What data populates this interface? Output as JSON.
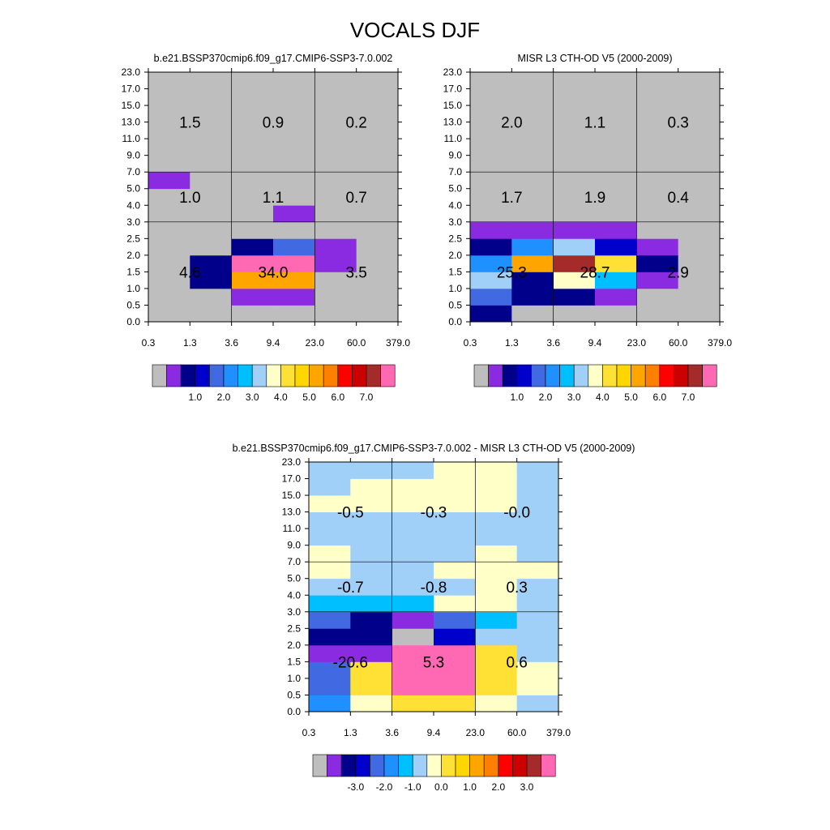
{
  "title": "VOCALS DJF",
  "colors": {
    "abs_palette": [
      "#bebebe",
      "#8a2be2",
      "#00008b",
      "#0000cd",
      "#4169e1",
      "#1e90ff",
      "#00bfff",
      "#a0cff8",
      "#ffffc8",
      "#ffe135",
      "#ffd700",
      "#ffa500",
      "#ff7f00",
      "#ff0000",
      "#cd0000",
      "#a52a2a",
      "#ff69b4"
    ],
    "diff_palette": [
      "#bebebe",
      "#8a2be2",
      "#00008b",
      "#0000cd",
      "#4169e1",
      "#1e90ff",
      "#00bfff",
      "#a0cff8",
      "#ffffc8",
      "#ffe135",
      "#ffd700",
      "#ffa500",
      "#ff7f00",
      "#ff0000",
      "#cd0000",
      "#a52a2a",
      "#ff69b4"
    ]
  },
  "chart_data": [
    {
      "type": "heatmap",
      "title": "b.e21.BSSP370cmip6.f09_g17.CMIP6-SSP3-7.0.002",
      "x_ticks": [
        "0.3",
        "1.3",
        "3.6",
        "9.4",
        "23.0",
        "60.0",
        "379.0"
      ],
      "y_ticks": [
        "0.0",
        "0.5",
        "1.0",
        "1.5",
        "2.0",
        "2.5",
        "3.0",
        "4.0",
        "5.0",
        "7.0",
        "9.0",
        "11.0",
        "13.0",
        "15.0",
        "17.0",
        "23.0"
      ],
      "cells": [
        [
          0,
          0,
          0,
          0,
          0,
          0
        ],
        [
          0,
          0,
          1,
          1,
          0,
          0
        ],
        [
          0,
          2,
          11,
          11,
          0,
          0
        ],
        [
          0,
          2,
          16,
          16,
          1,
          0
        ],
        [
          0,
          0,
          2,
          4,
          1,
          0
        ],
        [
          0,
          0,
          0,
          0,
          0,
          0
        ],
        [
          0,
          0,
          0,
          1,
          0,
          0
        ],
        [
          0,
          0,
          0,
          0,
          0,
          0
        ],
        [
          1,
          0,
          0,
          0,
          0,
          0
        ],
        [
          0,
          0,
          0,
          0,
          0,
          0
        ],
        [
          0,
          0,
          0,
          0,
          0,
          0
        ],
        [
          0,
          0,
          0,
          0,
          0,
          0
        ],
        [
          0,
          0,
          0,
          0,
          0,
          0
        ],
        [
          0,
          0,
          0,
          0,
          0,
          0
        ],
        [
          0,
          0,
          0,
          0,
          0,
          0
        ]
      ],
      "annotations": [
        {
          "label": "1.5",
          "col": 0.5,
          "row": 12
        },
        {
          "label": "0.9",
          "col": 1.5,
          "row": 12
        },
        {
          "label": "0.2",
          "col": 2.5,
          "row": 12
        },
        {
          "label": "1.0",
          "col": 0.5,
          "row": 7.5
        },
        {
          "label": "1.1",
          "col": 1.5,
          "row": 7.5
        },
        {
          "label": "0.7",
          "col": 2.5,
          "row": 7.5
        },
        {
          "label": "4.6",
          "col": 0.5,
          "row": 3.0
        },
        {
          "label": "34.0",
          "col": 1.5,
          "row": 3.0
        },
        {
          "label": "3.5",
          "col": 2.5,
          "row": 3.0
        }
      ],
      "colorbar_labels": [
        "1.0",
        "2.0",
        "3.0",
        "4.0",
        "5.0",
        "6.0",
        "7.0"
      ]
    },
    {
      "type": "heatmap",
      "title": "MISR L3 CTH-OD V5 (2000-2009)",
      "x_ticks": [
        "0.3",
        "1.3",
        "3.6",
        "9.4",
        "23.0",
        "60.0",
        "379.0"
      ],
      "y_ticks": [
        "0.0",
        "0.5",
        "1.0",
        "1.5",
        "2.0",
        "2.5",
        "3.0",
        "4.0",
        "5.0",
        "7.0",
        "9.0",
        "11.0",
        "13.0",
        "15.0",
        "17.0",
        "23.0"
      ],
      "cells": [
        [
          2,
          0,
          0,
          0,
          0,
          0
        ],
        [
          4,
          2,
          2,
          1,
          0,
          0
        ],
        [
          7,
          2,
          8,
          6,
          1,
          0
        ],
        [
          5,
          11,
          15,
          9,
          2,
          0
        ],
        [
          2,
          5,
          7,
          3,
          1,
          0
        ],
        [
          1,
          1,
          1,
          1,
          0,
          0
        ],
        [
          0,
          0,
          0,
          0,
          0,
          0
        ],
        [
          0,
          0,
          0,
          0,
          0,
          0
        ],
        [
          0,
          0,
          0,
          0,
          0,
          0
        ],
        [
          0,
          0,
          0,
          0,
          0,
          0
        ],
        [
          0,
          0,
          0,
          0,
          0,
          0
        ],
        [
          0,
          0,
          0,
          0,
          0,
          0
        ],
        [
          0,
          0,
          0,
          0,
          0,
          0
        ],
        [
          0,
          0,
          0,
          0,
          0,
          0
        ],
        [
          0,
          0,
          0,
          0,
          0,
          0
        ]
      ],
      "annotations": [
        {
          "label": "2.0",
          "col": 0.5,
          "row": 12
        },
        {
          "label": "1.1",
          "col": 1.5,
          "row": 12
        },
        {
          "label": "0.3",
          "col": 2.5,
          "row": 12
        },
        {
          "label": "1.7",
          "col": 0.5,
          "row": 7.5
        },
        {
          "label": "1.9",
          "col": 1.5,
          "row": 7.5
        },
        {
          "label": "0.4",
          "col": 2.5,
          "row": 7.5
        },
        {
          "label": "25.3",
          "col": 0.5,
          "row": 3.0
        },
        {
          "label": "28.7",
          "col": 1.5,
          "row": 3.0
        },
        {
          "label": "2.9",
          "col": 2.5,
          "row": 3.0
        }
      ],
      "colorbar_labels": [
        "1.0",
        "2.0",
        "3.0",
        "4.0",
        "5.0",
        "6.0",
        "7.0"
      ]
    },
    {
      "type": "heatmap",
      "title": "b.e21.BSSP370cmip6.f09_g17.CMIP6-SSP3-7.0.002 - MISR L3 CTH-OD V5 (2000-2009)",
      "x_ticks": [
        "0.3",
        "1.3",
        "3.6",
        "9.4",
        "23.0",
        "60.0",
        "379.0"
      ],
      "y_ticks": [
        "0.0",
        "0.5",
        "1.0",
        "1.5",
        "2.0",
        "2.5",
        "3.0",
        "4.0",
        "5.0",
        "7.0",
        "9.0",
        "11.0",
        "13.0",
        "15.0",
        "17.0",
        "23.0"
      ],
      "cells": [
        [
          5,
          8,
          9,
          9,
          8,
          7
        ],
        [
          4,
          9,
          16,
          16,
          9,
          8
        ],
        [
          4,
          9,
          16,
          16,
          9,
          8
        ],
        [
          1,
          1,
          16,
          16,
          9,
          7
        ],
        [
          2,
          2,
          0,
          3,
          7,
          7
        ],
        [
          4,
          2,
          1,
          4,
          6,
          7
        ],
        [
          6,
          6,
          6,
          8,
          8,
          7
        ],
        [
          7,
          7,
          7,
          7,
          8,
          7
        ],
        [
          8,
          7,
          7,
          8,
          8,
          8
        ],
        [
          8,
          7,
          7,
          7,
          8,
          7
        ],
        [
          7,
          7,
          7,
          7,
          7,
          7
        ],
        [
          7,
          7,
          7,
          7,
          7,
          7
        ],
        [
          8,
          8,
          8,
          8,
          8,
          7
        ],
        [
          7,
          8,
          8,
          8,
          8,
          7
        ],
        [
          7,
          7,
          7,
          8,
          8,
          7
        ]
      ],
      "annotations": [
        {
          "label": "-0.5",
          "col": 0.5,
          "row": 12
        },
        {
          "label": "-0.3",
          "col": 1.5,
          "row": 12
        },
        {
          "label": "-0.0",
          "col": 2.5,
          "row": 12
        },
        {
          "label": "-0.7",
          "col": 0.5,
          "row": 7.5
        },
        {
          "label": "-0.8",
          "col": 1.5,
          "row": 7.5
        },
        {
          "label": "0.3",
          "col": 2.5,
          "row": 7.5
        },
        {
          "label": "-20.6",
          "col": 0.5,
          "row": 3.0
        },
        {
          "label": "5.3",
          "col": 1.5,
          "row": 3.0
        },
        {
          "label": "0.6",
          "col": 2.5,
          "row": 3.0
        }
      ],
      "colorbar_labels": [
        "-3.0",
        "-2.0",
        "-1.0",
        "0.0",
        "1.0",
        "2.0",
        "3.0"
      ]
    }
  ]
}
